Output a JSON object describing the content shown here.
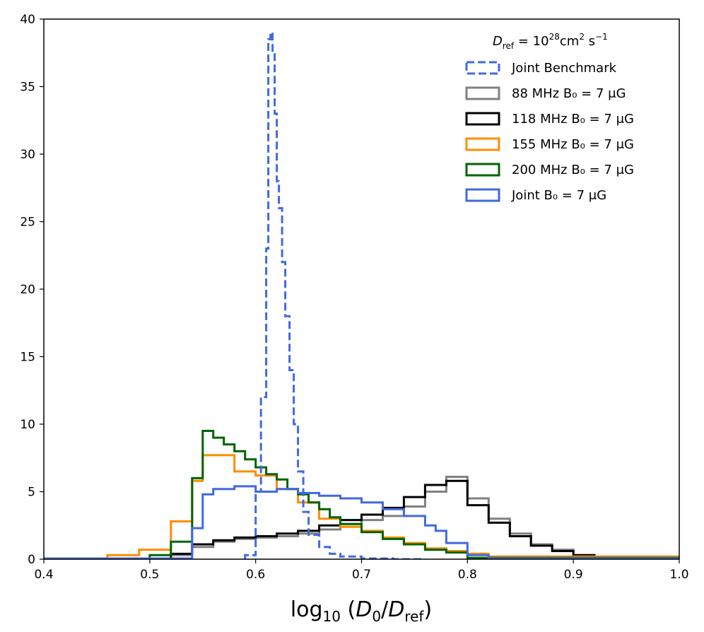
{
  "chart_data": {
    "type": "histogram",
    "xlabel": "log₁₀ (D₀/Dᵣₑᶠ)",
    "ylabel": "",
    "xlim": [
      0.4,
      1.0
    ],
    "ylim": [
      0,
      40
    ],
    "x_ticks": [
      "0.4",
      "0.5",
      "0.6",
      "0.7",
      "0.8",
      "0.9",
      "1.0"
    ],
    "y_ticks": [
      "0",
      "5",
      "10",
      "15",
      "20",
      "25",
      "30",
      "35",
      "40"
    ],
    "legend_title": "D_ref = 10^28 cm^2 s^-1",
    "legend_position": "top-right",
    "series": [
      {
        "name": "88 MHz B₀ = 7 μG",
        "color": "#808080",
        "style": "solid",
        "bin_edges": [
          0.4,
          0.52,
          0.54,
          0.56,
          0.58,
          0.6,
          0.62,
          0.64,
          0.66,
          0.68,
          0.7,
          0.72,
          0.74,
          0.76,
          0.78,
          0.8,
          0.82,
          0.84,
          0.86,
          0.88,
          0.9,
          0.92,
          1.0
        ],
        "counts": [
          0.05,
          0.3,
          0.9,
          1.3,
          1.5,
          1.6,
          1.7,
          1.9,
          2.2,
          2.6,
          2.9,
          3.2,
          3.9,
          5.0,
          6.1,
          4.5,
          3.0,
          1.9,
          1.1,
          0.7,
          0.3,
          0.05
        ]
      },
      {
        "name": "118 MHz B₀ = 7 μG",
        "color": "#000000",
        "style": "solid",
        "bin_edges": [
          0.4,
          0.52,
          0.54,
          0.56,
          0.58,
          0.6,
          0.62,
          0.64,
          0.66,
          0.68,
          0.7,
          0.72,
          0.74,
          0.76,
          0.78,
          0.8,
          0.82,
          0.84,
          0.86,
          0.88,
          0.9,
          0.92,
          1.0
        ],
        "counts": [
          0.05,
          0.4,
          1.1,
          1.4,
          1.6,
          1.7,
          1.9,
          2.1,
          2.5,
          2.9,
          3.3,
          3.8,
          4.6,
          5.5,
          5.8,
          4.0,
          2.7,
          1.7,
          1.0,
          0.6,
          0.3,
          0.05
        ]
      },
      {
        "name": "155 MHz B₀ = 7 μG",
        "color": "#ff8c00",
        "style": "solid",
        "bin_edges": [
          0.4,
          0.46,
          0.49,
          0.52,
          0.54,
          0.55,
          0.56,
          0.58,
          0.6,
          0.62,
          0.64,
          0.66,
          0.68,
          0.7,
          0.72,
          0.74,
          0.76,
          0.78,
          0.8,
          0.82,
          1.0
        ],
        "counts": [
          0.05,
          0.3,
          0.7,
          2.8,
          5.8,
          7.7,
          7.7,
          6.5,
          6.2,
          5.2,
          4.2,
          3.0,
          2.4,
          2.1,
          1.6,
          1.2,
          0.8,
          0.6,
          0.4,
          0.2
        ]
      },
      {
        "name": "200 MHz B₀ = 7 μG",
        "color": "#006400",
        "style": "solid",
        "bin_edges": [
          0.4,
          0.5,
          0.52,
          0.54,
          0.55,
          0.56,
          0.57,
          0.58,
          0.59,
          0.6,
          0.61,
          0.62,
          0.63,
          0.64,
          0.65,
          0.66,
          0.67,
          0.68,
          0.7,
          0.72,
          0.74,
          0.76,
          0.78,
          0.8,
          1.0
        ],
        "counts": [
          0.05,
          0.3,
          1.3,
          6.0,
          9.5,
          9.0,
          8.5,
          8.0,
          7.4,
          6.8,
          6.3,
          5.9,
          5.2,
          4.8,
          4.2,
          3.7,
          3.1,
          2.6,
          2.0,
          1.5,
          1.1,
          0.7,
          0.5,
          0.1
        ]
      },
      {
        "name": "Joint B₀ = 7 μG",
        "color": "#4169e1",
        "style": "solid",
        "bin_edges": [
          0.4,
          0.54,
          0.55,
          0.56,
          0.58,
          0.6,
          0.62,
          0.64,
          0.66,
          0.68,
          0.7,
          0.72,
          0.74,
          0.76,
          0.77,
          0.78,
          0.8,
          0.82,
          1.0
        ],
        "counts": [
          0.05,
          2.3,
          4.8,
          5.2,
          5.4,
          5.0,
          5.2,
          4.9,
          4.7,
          4.5,
          4.2,
          3.7,
          3.2,
          2.5,
          2.1,
          1.2,
          0.3,
          0.05
        ]
      },
      {
        "name": "Joint Benchmark",
        "color": "#4169e1",
        "style": "dashed",
        "bin_edges": [
          0.59,
          0.6,
          0.605,
          0.61,
          0.612,
          0.614,
          0.616,
          0.618,
          0.62,
          0.622,
          0.625,
          0.628,
          0.632,
          0.636,
          0.64,
          0.645,
          0.65,
          0.66,
          0.67,
          0.68,
          0.7,
          0.73,
          0.76
        ],
        "counts": [
          0.3,
          5.0,
          12.0,
          23.0,
          38.5,
          39.0,
          37.5,
          33.0,
          28.0,
          26.0,
          22.0,
          18.0,
          14.0,
          10.0,
          6.5,
          3.5,
          1.8,
          0.9,
          0.4,
          0.2,
          0.05,
          0.0
        ]
      }
    ]
  }
}
